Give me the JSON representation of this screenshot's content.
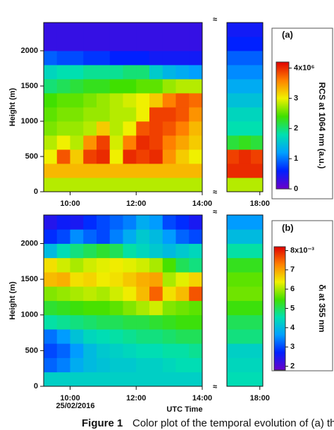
{
  "chart_data": [
    {
      "type": "heatmap",
      "panel_label": "(a)",
      "ylabel": "Height (m)",
      "colorbar_label": "RCS at 1064 nm (a.u.)",
      "ylim": [
        0,
        2400
      ],
      "yticks": [
        0,
        500,
        1000,
        1500,
        2000
      ],
      "ybins": [
        0,
        200,
        400,
        600,
        800,
        1000,
        1200,
        1400,
        1600,
        1800,
        2000,
        2200,
        2400
      ],
      "clim": [
        0,
        4.2
      ],
      "cticks": [
        0,
        1,
        2,
        3,
        {
          "value": 4,
          "label": "4x10⁶"
        }
      ],
      "colormap": [
        "#6a00c8",
        "#0020ff",
        "#00a0ff",
        "#00e0b0",
        "#40e000",
        "#f0f000",
        "#ff8000",
        "#e00000"
      ],
      "segments": [
        {
          "xlim": [
            9.2,
            14.0
          ],
          "xticks": [
            {
              "value": 10,
              "label": "10:00"
            },
            {
              "value": 12,
              "label": "12:00"
            },
            {
              "value": 14,
              "label": "14:00"
            }
          ],
          "xbins": [
            9.2,
            9.6,
            10.0,
            10.4,
            10.8,
            11.2,
            11.6,
            12.0,
            12.4,
            12.8,
            13.2,
            13.6,
            14.0
          ],
          "z": [
            [
              2.8,
              2.8,
              2.8,
              2.8,
              2.8,
              2.8,
              2.8,
              2.8,
              2.8,
              2.8,
              2.8,
              2.8
            ],
            [
              3.3,
              3.3,
              3.3,
              3.3,
              3.3,
              3.3,
              3.3,
              3.3,
              3.3,
              3.3,
              3.3,
              3.3
            ],
            [
              3.0,
              3.8,
              3.2,
              3.9,
              4.0,
              3.0,
              4.0,
              3.9,
              4.0,
              3.5,
              3.2,
              3.0
            ],
            [
              2.8,
              3.0,
              2.8,
              3.5,
              3.9,
              2.9,
              3.6,
              4.0,
              3.9,
              3.6,
              3.4,
              3.2
            ],
            [
              2.6,
              2.7,
              2.7,
              2.8,
              3.2,
              2.8,
              3.0,
              3.8,
              3.9,
              3.8,
              3.6,
              3.3
            ],
            [
              2.5,
              2.6,
              2.6,
              2.7,
              2.7,
              2.8,
              2.8,
              3.0,
              3.9,
              3.9,
              3.8,
              3.5
            ],
            [
              2.4,
              2.5,
              2.5,
              2.6,
              2.7,
              2.8,
              2.9,
              3.0,
              3.2,
              3.6,
              3.8,
              3.7
            ],
            [
              2.0,
              2.1,
              2.2,
              2.3,
              2.3,
              2.4,
              2.4,
              2.5,
              2.5,
              2.7,
              2.8,
              2.8
            ],
            [
              1.7,
              1.8,
              1.8,
              1.9,
              1.9,
              1.9,
              2.0,
              2.0,
              1.6,
              1.4,
              1.3,
              1.2
            ],
            [
              0.9,
              0.8,
              0.8,
              0.7,
              0.7,
              0.6,
              0.6,
              0.6,
              0.5,
              0.5,
              0.5,
              0.5
            ],
            [
              0.3,
              0.3,
              0.3,
              0.3,
              0.3,
              0.3,
              0.3,
              0.3,
              0.3,
              0.3,
              0.3,
              0.3
            ],
            [
              0.3,
              0.3,
              0.3,
              0.3,
              0.3,
              0.3,
              0.3,
              0.3,
              0.3,
              0.3,
              0.3,
              0.3
            ]
          ]
        },
        {
          "xlim": [
            16.9,
            18.1
          ],
          "xticks": [
            {
              "value": 18,
              "label": "18:00"
            }
          ],
          "xbins": [
            16.9,
            17.3,
            17.7,
            18.1
          ],
          "z": [
            [
              2.8,
              2.8,
              2.8
            ],
            [
              4.0,
              4.0,
              4.0
            ],
            [
              3.9,
              4.0,
              3.9
            ],
            [
              2.2,
              2.3,
              2.2
            ],
            [
              1.8,
              1.8,
              1.8
            ],
            [
              1.7,
              1.7,
              1.7
            ],
            [
              1.5,
              1.5,
              1.5
            ],
            [
              1.3,
              1.3,
              1.3
            ],
            [
              1.1,
              1.1,
              1.1
            ],
            [
              0.9,
              0.9,
              0.9
            ],
            [
              0.6,
              0.6,
              0.6
            ],
            [
              0.5,
              0.5,
              0.5
            ]
          ]
        }
      ]
    },
    {
      "type": "heatmap",
      "panel_label": "(b)",
      "ylabel": "Height (m)",
      "colorbar_label": "δₗ at 355 nm",
      "xlabel": "UTC Time",
      "date": "25/02/2016",
      "ylim": [
        0,
        2400
      ],
      "yticks": [
        0,
        500,
        1000,
        1500,
        2000
      ],
      "ybins": [
        0,
        200,
        400,
        600,
        800,
        1000,
        1200,
        1400,
        1600,
        1800,
        2000,
        2200,
        2400
      ],
      "clim": [
        1.8,
        8.2
      ],
      "cticks": [
        2,
        3,
        4,
        5,
        6,
        7,
        {
          "value": 8,
          "label": "8x10⁻³"
        }
      ],
      "colormap": [
        "#6a00c8",
        "#0020ff",
        "#00a0ff",
        "#00e0b0",
        "#40e000",
        "#f0f000",
        "#ff8000",
        "#e00000"
      ],
      "segments": [
        {
          "xlim": [
            9.2,
            14.0
          ],
          "xticks": [
            {
              "value": 10,
              "label": "10:00"
            },
            {
              "value": 12,
              "label": "12:00"
            },
            {
              "value": 14,
              "label": "14:00"
            }
          ],
          "xbins": [
            9.2,
            9.6,
            10.0,
            10.4,
            10.8,
            11.2,
            11.6,
            12.0,
            12.4,
            12.8,
            13.2,
            13.6,
            14.0
          ],
          "z": [
            [
              4.3,
              4.3,
              4.3,
              4.3,
              4.3,
              4.3,
              4.3,
              4.3,
              4.3,
              4.3,
              4.3,
              4.3
            ],
            [
              3.2,
              3.4,
              3.8,
              4.0,
              4.1,
              4.2,
              4.2,
              4.3,
              4.3,
              4.4,
              4.5,
              4.5
            ],
            [
              3.0,
              3.2,
              3.6,
              4.0,
              4.2,
              4.3,
              4.4,
              4.5,
              4.5,
              4.6,
              4.6,
              4.7
            ],
            [
              3.3,
              3.6,
              4.1,
              4.4,
              4.5,
              4.6,
              4.7,
              4.8,
              4.8,
              4.9,
              5.0,
              5.0
            ],
            [
              4.6,
              4.7,
              4.8,
              4.9,
              5.0,
              5.0,
              5.1,
              5.1,
              5.2,
              5.3,
              5.4,
              5.4
            ],
            [
              5.2,
              5.3,
              5.4,
              5.5,
              5.5,
              5.6,
              5.8,
              6.0,
              6.2,
              5.8,
              5.7,
              5.6
            ],
            [
              5.8,
              5.9,
              6.0,
              6.1,
              6.0,
              6.2,
              6.4,
              6.8,
              7.5,
              6.5,
              6.8,
              7.6
            ],
            [
              6.8,
              6.9,
              6.5,
              6.6,
              6.4,
              6.5,
              6.7,
              6.9,
              7.0,
              6.0,
              6.3,
              6.6
            ],
            [
              6.5,
              6.2,
              6.0,
              6.2,
              6.3,
              6.4,
              6.3,
              6.2,
              6.0,
              5.5,
              5.0,
              4.8
            ],
            [
              4.0,
              4.5,
              4.8,
              5.0,
              5.2,
              5.0,
              4.6,
              4.4,
              4.2,
              4.0,
              4.2,
              4.4
            ],
            [
              2.8,
              3.0,
              3.5,
              3.2,
              3.0,
              3.4,
              3.8,
              4.2,
              4.0,
              3.6,
              3.2,
              3.0
            ],
            [
              2.4,
              2.6,
              2.5,
              2.8,
              3.0,
              3.2,
              3.4,
              3.8,
              3.6,
              3.0,
              2.8,
              2.5
            ]
          ]
        },
        {
          "xlim": [
            16.9,
            18.1
          ],
          "xticks": [
            {
              "value": 18,
              "label": "18:00"
            }
          ],
          "xbins": [
            16.9,
            17.3,
            17.7,
            18.1
          ],
          "z": [
            [
              4.5,
              4.5,
              4.5
            ],
            [
              4.4,
              4.4,
              4.4
            ],
            [
              4.3,
              4.3,
              4.3
            ],
            [
              4.8,
              4.8,
              4.8
            ],
            [
              5.0,
              5.0,
              5.0
            ],
            [
              5.4,
              5.4,
              5.4
            ],
            [
              5.7,
              5.7,
              5.7
            ],
            [
              5.6,
              5.6,
              5.6
            ],
            [
              5.3,
              5.3,
              5.3
            ],
            [
              4.6,
              4.6,
              4.6
            ],
            [
              4.0,
              4.0,
              4.0
            ],
            [
              3.6,
              3.6,
              3.6
            ]
          ]
        }
      ]
    }
  ],
  "caption": {
    "label": "Figure 1",
    "text": "Color plot of the temporal evolution of (a) th"
  }
}
